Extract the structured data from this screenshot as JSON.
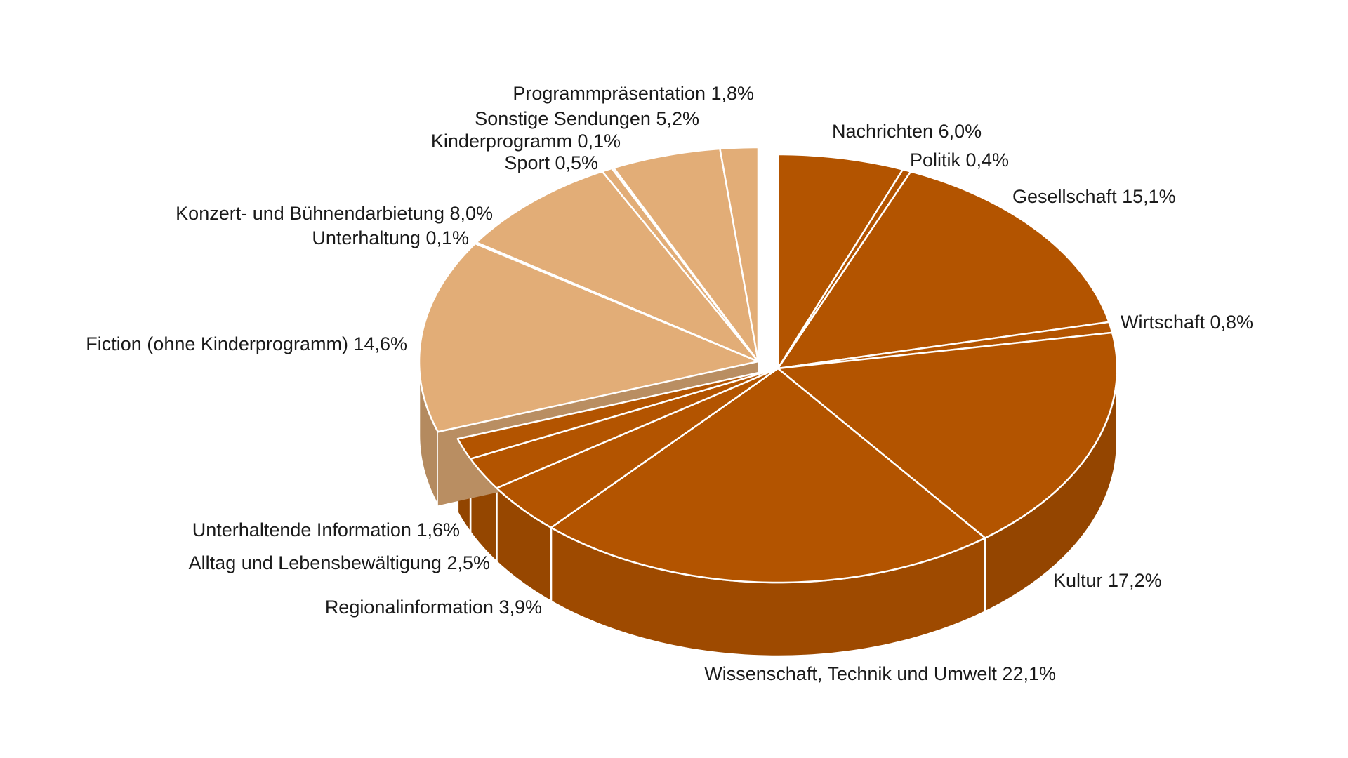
{
  "chart_data": {
    "type": "pie",
    "variant": "3d-exploded",
    "title": "",
    "colors": {
      "information_group": "#b35400",
      "entertainment_group": "#e2ad77",
      "separator": "#ffffff"
    },
    "slices": [
      {
        "label": "Nachrichten 6,0%",
        "name": "Nachrichten",
        "value": 6.0,
        "group": "information"
      },
      {
        "label": "Politik 0,4%",
        "name": "Politik",
        "value": 0.4,
        "group": "information"
      },
      {
        "label": "Gesellschaft 15,1%",
        "name": "Gesellschaft",
        "value": 15.1,
        "group": "information"
      },
      {
        "label": "Wirtschaft 0,8%",
        "name": "Wirtschaft",
        "value": 0.8,
        "group": "information"
      },
      {
        "label": "Kultur 17,2%",
        "name": "Kultur",
        "value": 17.2,
        "group": "information"
      },
      {
        "label": "Wissenschaft, Technik und Umwelt 22,1%",
        "name": "Wissenschaft, Technik und Umwelt",
        "value": 22.1,
        "group": "information"
      },
      {
        "label": "Regionalinformation 3,9%",
        "name": "Regionalinformation",
        "value": 3.9,
        "group": "information"
      },
      {
        "label": "Alltag und Lebensbewältigung 2,5%",
        "name": "Alltag und Lebensbewältigung",
        "value": 2.5,
        "group": "information"
      },
      {
        "label": "Unterhaltende Information 1,6%",
        "name": "Unterhaltende Information",
        "value": 1.6,
        "group": "information"
      },
      {
        "label": "Fiction (ohne Kinderprogramm) 14,6%",
        "name": "Fiction (ohne Kinderprogramm)",
        "value": 14.6,
        "group": "entertainment"
      },
      {
        "label": "Unterhaltung 0,1%",
        "name": "Unterhaltung",
        "value": 0.1,
        "group": "entertainment"
      },
      {
        "label": "Konzert- und Bühnendarbietung 8,0%",
        "name": "Konzert- und Bühnendarbietung",
        "value": 8.0,
        "group": "entertainment"
      },
      {
        "label": "Sport 0,5%",
        "name": "Sport",
        "value": 0.5,
        "group": "entertainment"
      },
      {
        "label": "Kinderprogramm 0,1%",
        "name": "Kinderprogramm",
        "value": 0.1,
        "group": "entertainment"
      },
      {
        "label": "Sonstige Sendungen 5,2%",
        "name": "Sonstige Sendungen",
        "value": 5.2,
        "group": "entertainment"
      },
      {
        "label": "Programmpräsentation 1,8%",
        "name": "Programmpräsentation",
        "value": 1.8,
        "group": "entertainment"
      }
    ]
  }
}
